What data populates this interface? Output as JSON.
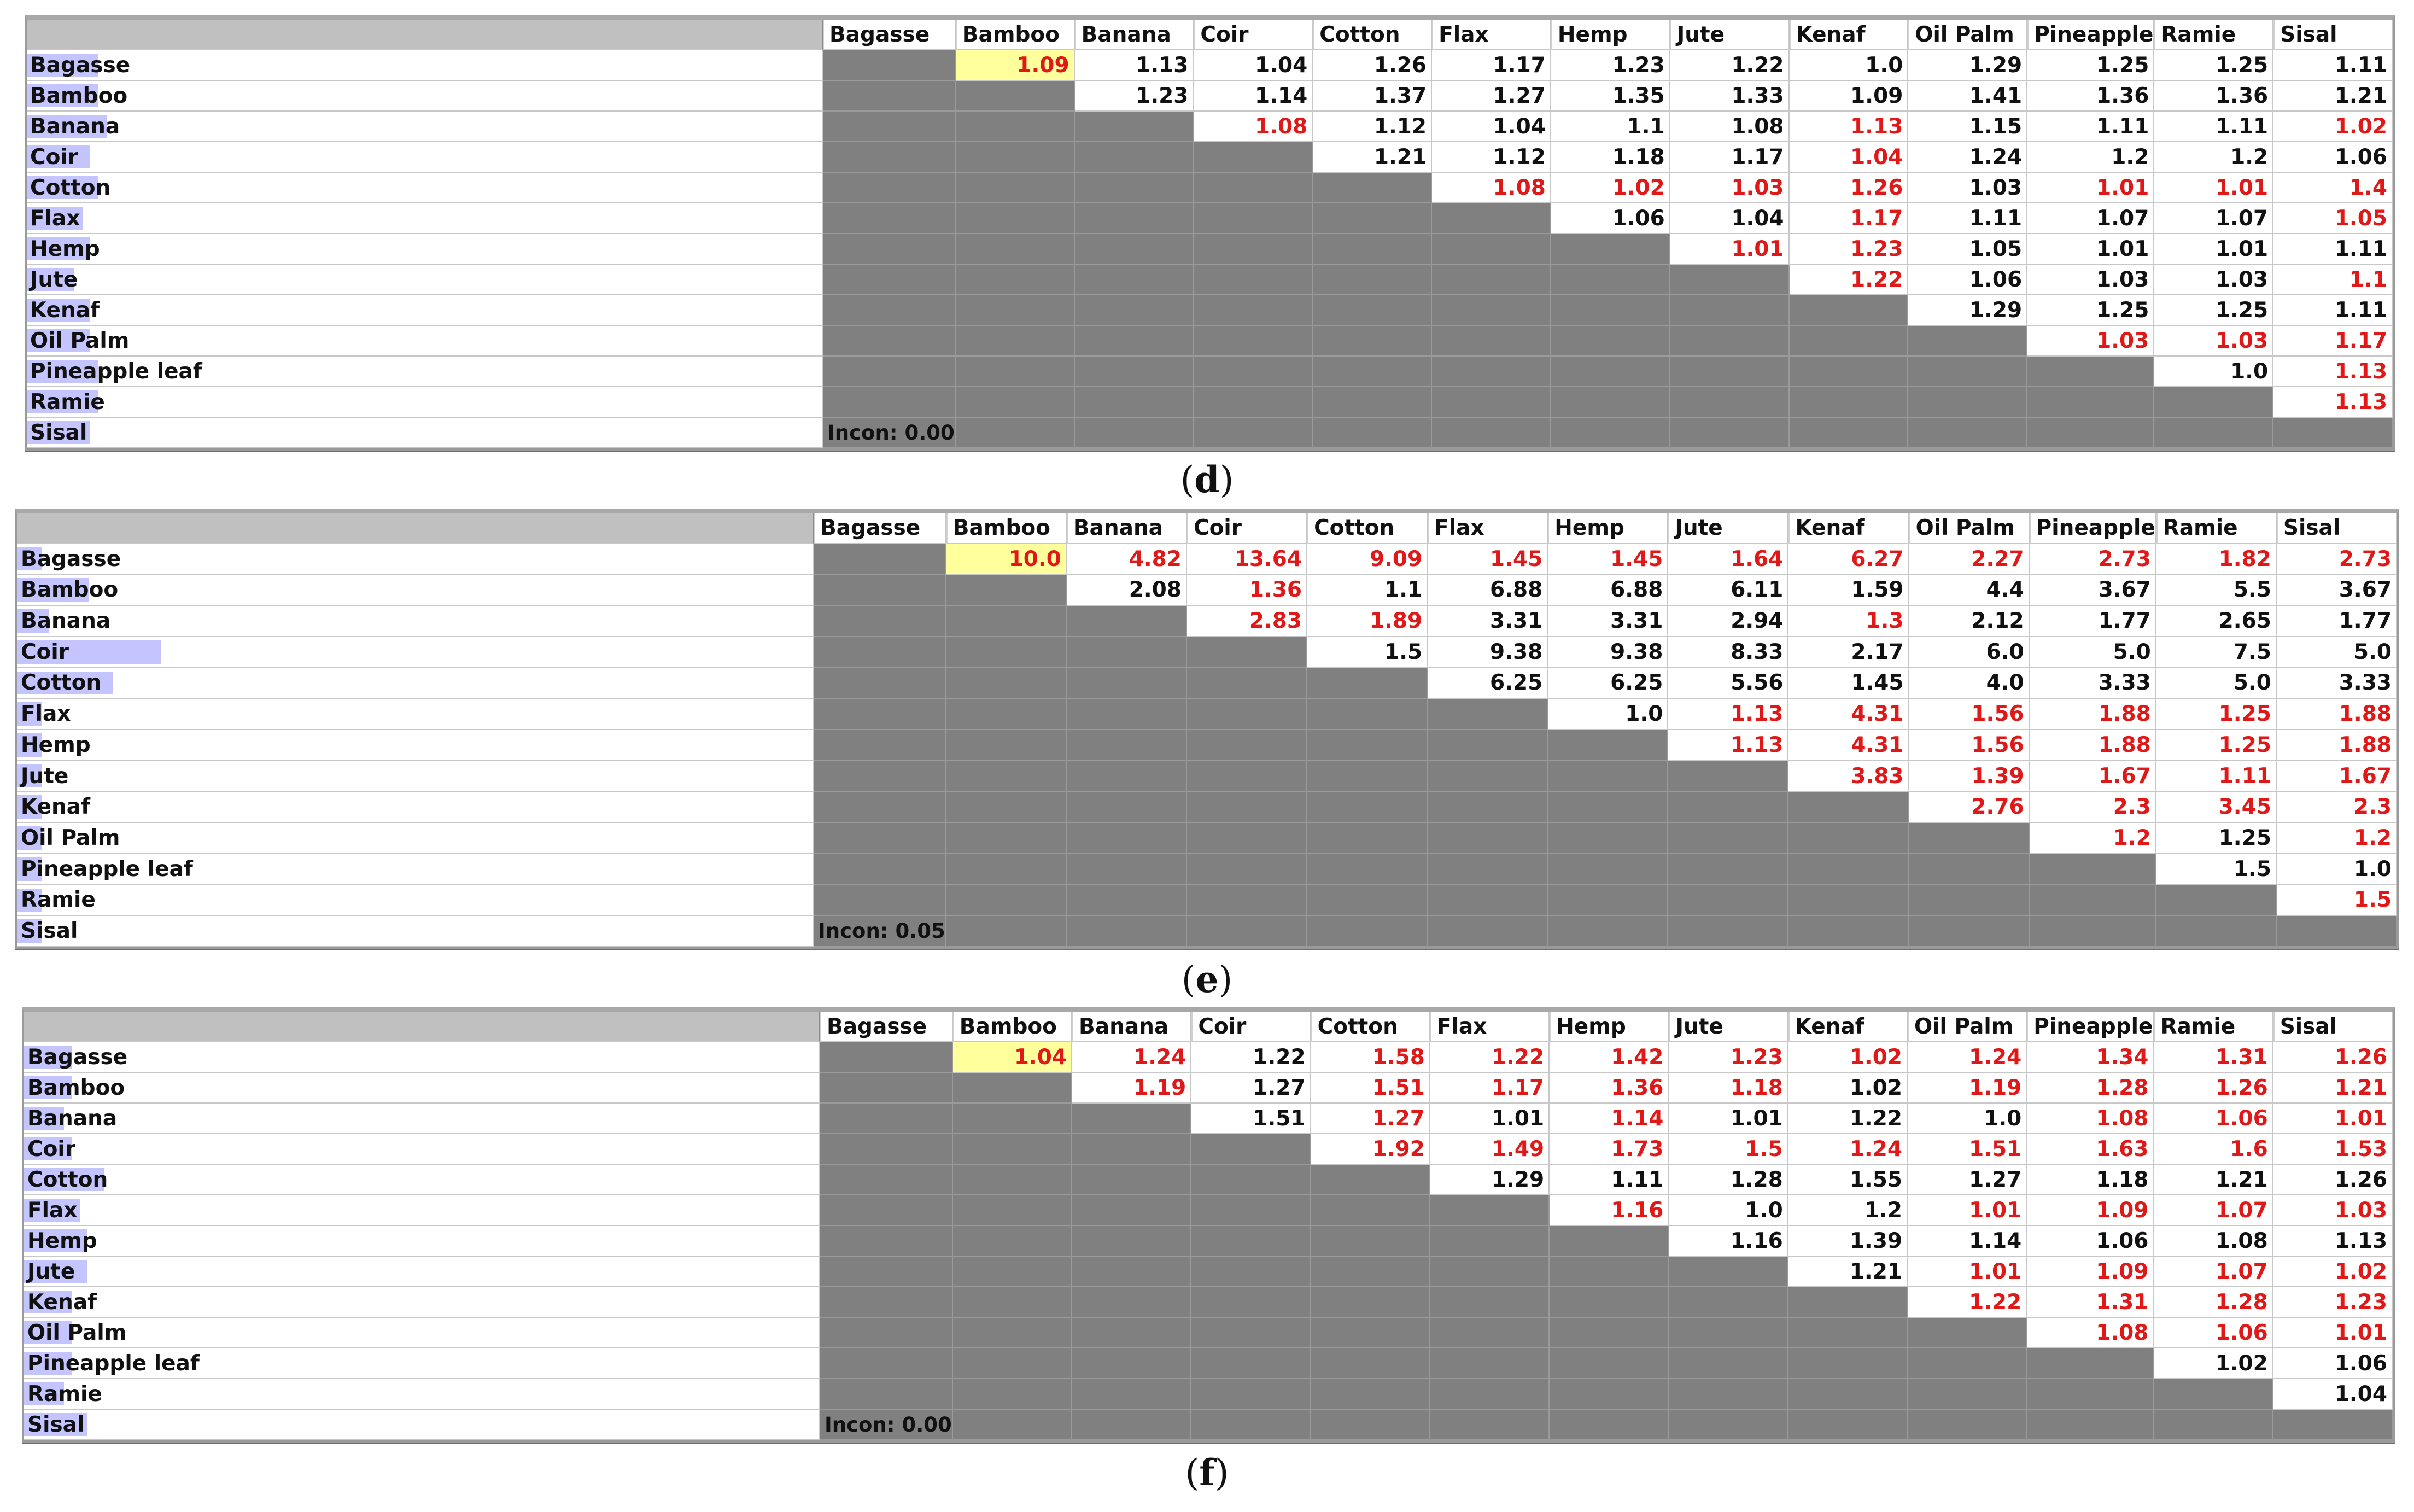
{
  "criteria": [
    "Bagasse",
    "Bamboo",
    "Banana",
    "Coir",
    "Cotton",
    "Flax",
    "Hemp",
    "Jute",
    "Kenaf",
    "Oil Palm",
    "Pineapple",
    "Ramie",
    "Sisal"
  ],
  "row_labels": [
    "Bagasse",
    "Bamboo",
    "Banana",
    "Coir",
    "Cotton",
    "Flax",
    "Hemp",
    "Jute",
    "Kenaf",
    "Oil Palm",
    "Pineapple leaf",
    "Ramie",
    "Sisal"
  ],
  "colors": {
    "red": "#e11818",
    "black": "#111111",
    "highlight": "#ffff9c",
    "gray": "#808080",
    "label_bar": "#c4c4ff"
  },
  "panels": [
    {
      "caption_letter": "d",
      "incon": "Incon: 0.00",
      "label_bars": [
        0.09,
        0.09,
        0.1,
        0.08,
        0.09,
        0.07,
        0.08,
        0.06,
        0.08,
        0.08,
        0.09,
        0.09,
        0.08
      ],
      "rows": [
        [
          [
            "1.09",
            "r"
          ],
          [
            "1.13",
            "b"
          ],
          [
            "1.04",
            "b"
          ],
          [
            "1.26",
            "b"
          ],
          [
            "1.17",
            "b"
          ],
          [
            "1.23",
            "b"
          ],
          [
            "1.22",
            "b"
          ],
          [
            "1.0",
            "b"
          ],
          [
            "1.29",
            "b"
          ],
          [
            "1.25",
            "b"
          ],
          [
            "1.25",
            "b"
          ],
          [
            "1.11",
            "b"
          ]
        ],
        [
          [
            "1.23",
            "b"
          ],
          [
            "1.14",
            "b"
          ],
          [
            "1.37",
            "b"
          ],
          [
            "1.27",
            "b"
          ],
          [
            "1.35",
            "b"
          ],
          [
            "1.33",
            "b"
          ],
          [
            "1.09",
            "b"
          ],
          [
            "1.41",
            "b"
          ],
          [
            "1.36",
            "b"
          ],
          [
            "1.36",
            "b"
          ],
          [
            "1.21",
            "b"
          ]
        ],
        [
          [
            "1.08",
            "r"
          ],
          [
            "1.12",
            "b"
          ],
          [
            "1.04",
            "b"
          ],
          [
            "1.1",
            "b"
          ],
          [
            "1.08",
            "b"
          ],
          [
            "1.13",
            "r"
          ],
          [
            "1.15",
            "b"
          ],
          [
            "1.11",
            "b"
          ],
          [
            "1.11",
            "b"
          ],
          [
            "1.02",
            "r"
          ]
        ],
        [
          [
            "1.21",
            "b"
          ],
          [
            "1.12",
            "b"
          ],
          [
            "1.18",
            "b"
          ],
          [
            "1.17",
            "b"
          ],
          [
            "1.04",
            "r"
          ],
          [
            "1.24",
            "b"
          ],
          [
            "1.2",
            "b"
          ],
          [
            "1.2",
            "b"
          ],
          [
            "1.06",
            "b"
          ]
        ],
        [
          [
            "1.08",
            "r"
          ],
          [
            "1.02",
            "r"
          ],
          [
            "1.03",
            "r"
          ],
          [
            "1.26",
            "r"
          ],
          [
            "1.03",
            "b"
          ],
          [
            "1.01",
            "r"
          ],
          [
            "1.01",
            "r"
          ],
          [
            "1.4",
            "r"
          ]
        ],
        [
          [
            "1.06",
            "b"
          ],
          [
            "1.04",
            "b"
          ],
          [
            "1.17",
            "r"
          ],
          [
            "1.11",
            "b"
          ],
          [
            "1.07",
            "b"
          ],
          [
            "1.07",
            "b"
          ],
          [
            "1.05",
            "r"
          ]
        ],
        [
          [
            "1.01",
            "r"
          ],
          [
            "1.23",
            "r"
          ],
          [
            "1.05",
            "b"
          ],
          [
            "1.01",
            "b"
          ],
          [
            "1.01",
            "b"
          ],
          [
            "1.11",
            "b"
          ]
        ],
        [
          [
            "1.22",
            "r"
          ],
          [
            "1.06",
            "b"
          ],
          [
            "1.03",
            "b"
          ],
          [
            "1.03",
            "b"
          ],
          [
            "1.1",
            "r"
          ]
        ],
        [
          [
            "1.29",
            "b"
          ],
          [
            "1.25",
            "b"
          ],
          [
            "1.25",
            "b"
          ],
          [
            "1.11",
            "b"
          ]
        ],
        [
          [
            "1.03",
            "r"
          ],
          [
            "1.03",
            "r"
          ],
          [
            "1.17",
            "r"
          ]
        ],
        [
          [
            "1.0",
            "b"
          ],
          [
            "1.13",
            "r"
          ]
        ],
        [
          [
            "1.13",
            "r"
          ]
        ],
        []
      ]
    },
    {
      "caption_letter": "e",
      "incon": "Incon: 0.05",
      "label_bars": [
        0.03,
        0.09,
        0.04,
        0.18,
        0.12,
        0.03,
        0.03,
        0.03,
        0.03,
        0.03,
        0.03,
        0.03,
        0.03
      ],
      "rows": [
        [
          [
            "10.0",
            "r"
          ],
          [
            "4.82",
            "r"
          ],
          [
            "13.64",
            "r"
          ],
          [
            "9.09",
            "r"
          ],
          [
            "1.45",
            "r"
          ],
          [
            "1.45",
            "r"
          ],
          [
            "1.64",
            "r"
          ],
          [
            "6.27",
            "r"
          ],
          [
            "2.27",
            "r"
          ],
          [
            "2.73",
            "r"
          ],
          [
            "1.82",
            "r"
          ],
          [
            "2.73",
            "r"
          ]
        ],
        [
          [
            "2.08",
            "b"
          ],
          [
            "1.36",
            "r"
          ],
          [
            "1.1",
            "b"
          ],
          [
            "6.88",
            "b"
          ],
          [
            "6.88",
            "b"
          ],
          [
            "6.11",
            "b"
          ],
          [
            "1.59",
            "b"
          ],
          [
            "4.4",
            "b"
          ],
          [
            "3.67",
            "b"
          ],
          [
            "5.5",
            "b"
          ],
          [
            "3.67",
            "b"
          ]
        ],
        [
          [
            "2.83",
            "r"
          ],
          [
            "1.89",
            "r"
          ],
          [
            "3.31",
            "b"
          ],
          [
            "3.31",
            "b"
          ],
          [
            "2.94",
            "b"
          ],
          [
            "1.3",
            "r"
          ],
          [
            "2.12",
            "b"
          ],
          [
            "1.77",
            "b"
          ],
          [
            "2.65",
            "b"
          ],
          [
            "1.77",
            "b"
          ]
        ],
        [
          [
            "1.5",
            "b"
          ],
          [
            "9.38",
            "b"
          ],
          [
            "9.38",
            "b"
          ],
          [
            "8.33",
            "b"
          ],
          [
            "2.17",
            "b"
          ],
          [
            "6.0",
            "b"
          ],
          [
            "5.0",
            "b"
          ],
          [
            "7.5",
            "b"
          ],
          [
            "5.0",
            "b"
          ]
        ],
        [
          [
            "6.25",
            "b"
          ],
          [
            "6.25",
            "b"
          ],
          [
            "5.56",
            "b"
          ],
          [
            "1.45",
            "b"
          ],
          [
            "4.0",
            "b"
          ],
          [
            "3.33",
            "b"
          ],
          [
            "5.0",
            "b"
          ],
          [
            "3.33",
            "b"
          ]
        ],
        [
          [
            "1.0",
            "b"
          ],
          [
            "1.13",
            "r"
          ],
          [
            "4.31",
            "r"
          ],
          [
            "1.56",
            "r"
          ],
          [
            "1.88",
            "r"
          ],
          [
            "1.25",
            "r"
          ],
          [
            "1.88",
            "r"
          ]
        ],
        [
          [
            "1.13",
            "r"
          ],
          [
            "4.31",
            "r"
          ],
          [
            "1.56",
            "r"
          ],
          [
            "1.88",
            "r"
          ],
          [
            "1.25",
            "r"
          ],
          [
            "1.88",
            "r"
          ]
        ],
        [
          [
            "3.83",
            "r"
          ],
          [
            "1.39",
            "r"
          ],
          [
            "1.67",
            "r"
          ],
          [
            "1.11",
            "r"
          ],
          [
            "1.67",
            "r"
          ]
        ],
        [
          [
            "2.76",
            "r"
          ],
          [
            "2.3",
            "r"
          ],
          [
            "3.45",
            "r"
          ],
          [
            "2.3",
            "r"
          ]
        ],
        [
          [
            "1.2",
            "r"
          ],
          [
            "1.25",
            "b"
          ],
          [
            "1.2",
            "r"
          ]
        ],
        [
          [
            "1.5",
            "b"
          ],
          [
            "1.0",
            "b"
          ]
        ],
        [
          [
            "1.5",
            "r"
          ]
        ],
        []
      ]
    },
    {
      "caption_letter": "f",
      "incon": "Incon: 0.00",
      "label_bars": [
        0.06,
        0.06,
        0.05,
        0.06,
        0.1,
        0.07,
        0.08,
        0.08,
        0.06,
        0.06,
        0.06,
        0.05,
        0.08
      ],
      "rows": [
        [
          [
            "1.04",
            "r"
          ],
          [
            "1.24",
            "r"
          ],
          [
            "1.22",
            "b"
          ],
          [
            "1.58",
            "r"
          ],
          [
            "1.22",
            "r"
          ],
          [
            "1.42",
            "r"
          ],
          [
            "1.23",
            "r"
          ],
          [
            "1.02",
            "r"
          ],
          [
            "1.24",
            "r"
          ],
          [
            "1.34",
            "r"
          ],
          [
            "1.31",
            "r"
          ],
          [
            "1.26",
            "r"
          ]
        ],
        [
          [
            "1.19",
            "r"
          ],
          [
            "1.27",
            "b"
          ],
          [
            "1.51",
            "r"
          ],
          [
            "1.17",
            "r"
          ],
          [
            "1.36",
            "r"
          ],
          [
            "1.18",
            "r"
          ],
          [
            "1.02",
            "b"
          ],
          [
            "1.19",
            "r"
          ],
          [
            "1.28",
            "r"
          ],
          [
            "1.26",
            "r"
          ],
          [
            "1.21",
            "r"
          ]
        ],
        [
          [
            "1.51",
            "b"
          ],
          [
            "1.27",
            "r"
          ],
          [
            "1.01",
            "b"
          ],
          [
            "1.14",
            "r"
          ],
          [
            "1.01",
            "b"
          ],
          [
            "1.22",
            "b"
          ],
          [
            "1.0",
            "b"
          ],
          [
            "1.08",
            "r"
          ],
          [
            "1.06",
            "r"
          ],
          [
            "1.01",
            "r"
          ]
        ],
        [
          [
            "1.92",
            "r"
          ],
          [
            "1.49",
            "r"
          ],
          [
            "1.73",
            "r"
          ],
          [
            "1.5",
            "r"
          ],
          [
            "1.24",
            "r"
          ],
          [
            "1.51",
            "r"
          ],
          [
            "1.63",
            "r"
          ],
          [
            "1.6",
            "r"
          ],
          [
            "1.53",
            "r"
          ]
        ],
        [
          [
            "1.29",
            "b"
          ],
          [
            "1.11",
            "b"
          ],
          [
            "1.28",
            "b"
          ],
          [
            "1.55",
            "b"
          ],
          [
            "1.27",
            "b"
          ],
          [
            "1.18",
            "b"
          ],
          [
            "1.21",
            "b"
          ],
          [
            "1.26",
            "b"
          ]
        ],
        [
          [
            "1.16",
            "r"
          ],
          [
            "1.0",
            "b"
          ],
          [
            "1.2",
            "b"
          ],
          [
            "1.01",
            "r"
          ],
          [
            "1.09",
            "r"
          ],
          [
            "1.07",
            "r"
          ],
          [
            "1.03",
            "r"
          ]
        ],
        [
          [
            "1.16",
            "b"
          ],
          [
            "1.39",
            "b"
          ],
          [
            "1.14",
            "b"
          ],
          [
            "1.06",
            "b"
          ],
          [
            "1.08",
            "b"
          ],
          [
            "1.13",
            "b"
          ]
        ],
        [
          [
            "1.21",
            "b"
          ],
          [
            "1.01",
            "r"
          ],
          [
            "1.09",
            "r"
          ],
          [
            "1.07",
            "r"
          ],
          [
            "1.02",
            "r"
          ]
        ],
        [
          [
            "1.22",
            "r"
          ],
          [
            "1.31",
            "r"
          ],
          [
            "1.28",
            "r"
          ],
          [
            "1.23",
            "r"
          ]
        ],
        [
          [
            "1.08",
            "r"
          ],
          [
            "1.06",
            "r"
          ],
          [
            "1.01",
            "r"
          ]
        ],
        [
          [
            "1.02",
            "b"
          ],
          [
            "1.06",
            "b"
          ]
        ],
        [
          [
            "1.04",
            "b"
          ]
        ],
        []
      ]
    }
  ]
}
